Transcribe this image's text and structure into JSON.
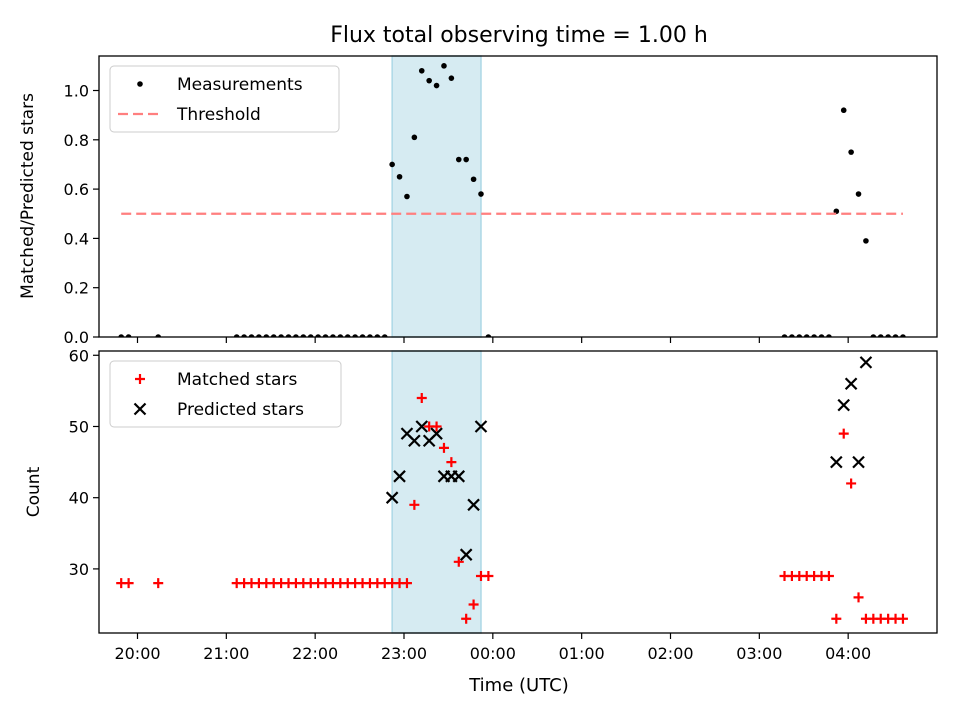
{
  "title": "Flux total observing time = 1.00 h",
  "xlabel": "Time (UTC)",
  "colors": {
    "measurements": "#000000",
    "threshold": "#ff7f7f",
    "matched": "#ff0000",
    "predicted": "#000000",
    "highlight_band": "#add8e6"
  },
  "chart_data": [
    {
      "type": "scatter",
      "ylabel": "Matched/Predicted stars",
      "ylim": [
        0,
        1.14
      ],
      "xlim": [
        "19:34",
        "05:00"
      ],
      "yticks": [
        0.0,
        0.2,
        0.4,
        0.6,
        0.8,
        1.0
      ],
      "ytick_labels": [
        "0.0",
        "0.2",
        "0.4",
        "0.6",
        "0.8",
        "1.0"
      ],
      "grid": false,
      "legend_position": "top-left",
      "highlight_band": {
        "x": [
          "22:52",
          "23:52"
        ]
      },
      "series": [
        {
          "name": "Measurements",
          "marker": "dot",
          "points": [
            [
              "19:49",
              0
            ],
            [
              "19:54",
              0
            ],
            [
              "20:14",
              0
            ],
            [
              "21:07",
              0
            ],
            [
              "21:12",
              0
            ],
            [
              "21:17",
              0
            ],
            [
              "21:22",
              0
            ],
            [
              "21:27",
              0
            ],
            [
              "21:32",
              0
            ],
            [
              "21:37",
              0
            ],
            [
              "21:42",
              0
            ],
            [
              "21:47",
              0
            ],
            [
              "21:52",
              0
            ],
            [
              "21:57",
              0
            ],
            [
              "22:02",
              0
            ],
            [
              "22:07",
              0
            ],
            [
              "22:12",
              0
            ],
            [
              "22:17",
              0
            ],
            [
              "22:22",
              0
            ],
            [
              "22:27",
              0
            ],
            [
              "22:32",
              0
            ],
            [
              "22:37",
              0
            ],
            [
              "22:42",
              0
            ],
            [
              "22:47",
              0
            ],
            [
              "22:52",
              0.7
            ],
            [
              "22:57",
              0.65
            ],
            [
              "23:02",
              0.57
            ],
            [
              "23:07",
              0.81
            ],
            [
              "23:12",
              1.08
            ],
            [
              "23:17",
              1.04
            ],
            [
              "23:22",
              1.02
            ],
            [
              "23:27",
              1.1
            ],
            [
              "23:32",
              1.05
            ],
            [
              "23:37",
              0.72
            ],
            [
              "23:42",
              0.72
            ],
            [
              "23:47",
              0.64
            ],
            [
              "23:52",
              0.58
            ],
            [
              "23:57",
              0
            ],
            [
              "03:17",
              0
            ],
            [
              "03:22",
              0
            ],
            [
              "03:27",
              0
            ],
            [
              "03:32",
              0
            ],
            [
              "03:37",
              0
            ],
            [
              "03:42",
              0
            ],
            [
              "03:47",
              0
            ],
            [
              "03:52",
              0.51
            ],
            [
              "03:57",
              0.92
            ],
            [
              "04:02",
              0.75
            ],
            [
              "04:07",
              0.58
            ],
            [
              "04:12",
              0.39
            ],
            [
              "04:17",
              0
            ],
            [
              "04:22",
              0
            ],
            [
              "04:27",
              0
            ],
            [
              "04:32",
              0
            ],
            [
              "04:37",
              0
            ]
          ]
        },
        {
          "name": "Threshold",
          "marker": "dashed-line",
          "points": [
            [
              "19:49",
              0.5
            ],
            [
              "04:37",
              0.5
            ]
          ]
        }
      ]
    },
    {
      "type": "scatter",
      "ylabel": "Count",
      "ylim": [
        21,
        60.6
      ],
      "xlim": [
        "19:34",
        "05:00"
      ],
      "yticks": [
        30,
        40,
        50,
        60
      ],
      "ytick_labels": [
        "30",
        "40",
        "50",
        "60"
      ],
      "xticks": [
        "20:00",
        "21:00",
        "22:00",
        "23:00",
        "00:00",
        "01:00",
        "02:00",
        "03:00",
        "04:00"
      ],
      "xtick_labels": [
        "20:00",
        "21:00",
        "22:00",
        "23:00",
        "00:00",
        "01:00",
        "02:00",
        "03:00",
        "04:00"
      ],
      "grid": false,
      "legend_position": "top-left",
      "highlight_band": {
        "x": [
          "22:52",
          "23:52"
        ]
      },
      "series": [
        {
          "name": "Matched stars",
          "marker": "plus",
          "points": [
            [
              "19:49",
              28
            ],
            [
              "19:54",
              28
            ],
            [
              "20:14",
              28
            ],
            [
              "21:07",
              28
            ],
            [
              "21:12",
              28
            ],
            [
              "21:17",
              28
            ],
            [
              "21:22",
              28
            ],
            [
              "21:27",
              28
            ],
            [
              "21:32",
              28
            ],
            [
              "21:37",
              28
            ],
            [
              "21:42",
              28
            ],
            [
              "21:47",
              28
            ],
            [
              "21:52",
              28
            ],
            [
              "21:57",
              28
            ],
            [
              "22:02",
              28
            ],
            [
              "22:07",
              28
            ],
            [
              "22:12",
              28
            ],
            [
              "22:17",
              28
            ],
            [
              "22:22",
              28
            ],
            [
              "22:27",
              28
            ],
            [
              "22:32",
              28
            ],
            [
              "22:37",
              28
            ],
            [
              "22:42",
              28
            ],
            [
              "22:47",
              28
            ],
            [
              "22:52",
              28
            ],
            [
              "22:57",
              28
            ],
            [
              "23:02",
              28
            ],
            [
              "23:07",
              39
            ],
            [
              "23:12",
              54
            ],
            [
              "23:17",
              50
            ],
            [
              "23:22",
              50
            ],
            [
              "23:27",
              47
            ],
            [
              "23:32",
              45
            ],
            [
              "23:37",
              31
            ],
            [
              "23:42",
              23
            ],
            [
              "23:47",
              25
            ],
            [
              "23:52",
              29
            ],
            [
              "23:57",
              29
            ],
            [
              "03:17",
              29
            ],
            [
              "03:22",
              29
            ],
            [
              "03:27",
              29
            ],
            [
              "03:32",
              29
            ],
            [
              "03:37",
              29
            ],
            [
              "03:42",
              29
            ],
            [
              "03:47",
              29
            ],
            [
              "03:52",
              23
            ],
            [
              "03:57",
              49
            ],
            [
              "04:02",
              42
            ],
            [
              "04:07",
              26
            ],
            [
              "04:12",
              23
            ],
            [
              "04:17",
              23
            ],
            [
              "04:22",
              23
            ],
            [
              "04:27",
              23
            ],
            [
              "04:32",
              23
            ],
            [
              "04:37",
              23
            ]
          ]
        },
        {
          "name": "Predicted stars",
          "marker": "x",
          "points": [
            [
              "22:52",
              40
            ],
            [
              "22:57",
              43
            ],
            [
              "23:02",
              49
            ],
            [
              "23:07",
              48
            ],
            [
              "23:12",
              50
            ],
            [
              "23:17",
              48
            ],
            [
              "23:22",
              49
            ],
            [
              "23:27",
              43
            ],
            [
              "23:32",
              43
            ],
            [
              "23:37",
              43
            ],
            [
              "23:42",
              32
            ],
            [
              "23:47",
              39
            ],
            [
              "23:52",
              50
            ],
            [
              "03:52",
              45
            ],
            [
              "03:57",
              53
            ],
            [
              "04:02",
              56
            ],
            [
              "04:07",
              45
            ],
            [
              "04:12",
              59
            ]
          ]
        }
      ]
    }
  ]
}
